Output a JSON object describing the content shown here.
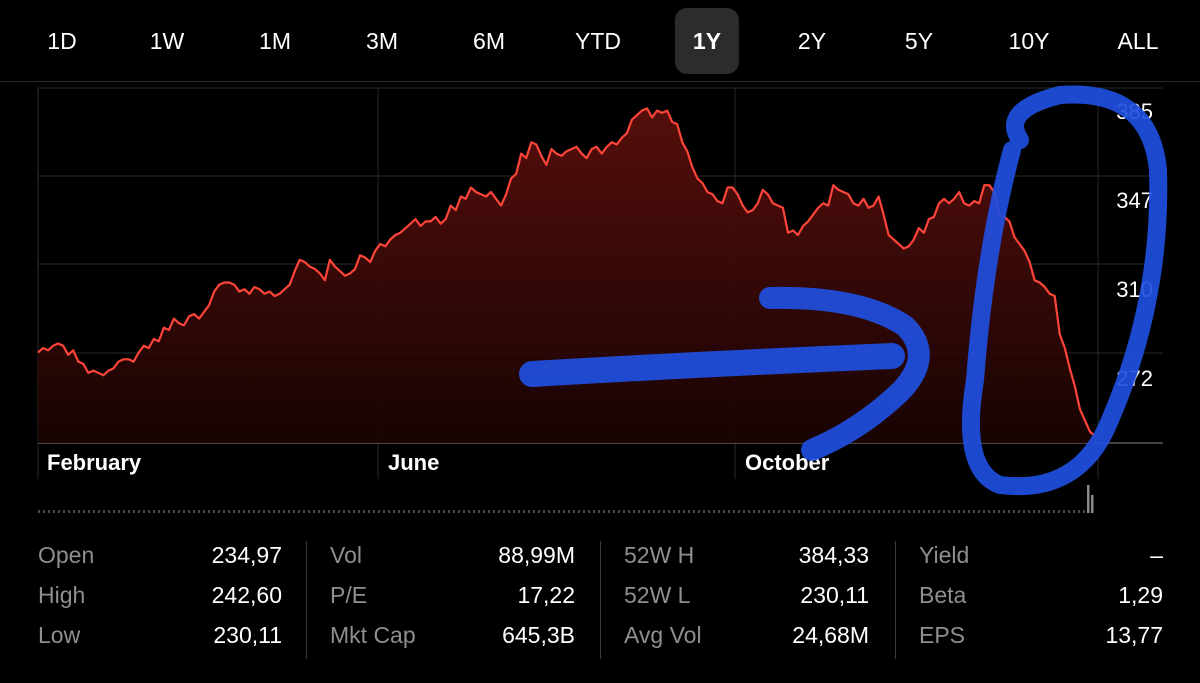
{
  "tabs": [
    {
      "label": "1D",
      "selected": false
    },
    {
      "label": "1W",
      "selected": false
    },
    {
      "label": "1M",
      "selected": false
    },
    {
      "label": "3M",
      "selected": false
    },
    {
      "label": "6M",
      "selected": false
    },
    {
      "label": "YTD",
      "selected": false
    },
    {
      "label": "1Y",
      "selected": true
    },
    {
      "label": "2Y",
      "selected": false
    },
    {
      "label": "5Y",
      "selected": false
    },
    {
      "label": "10Y",
      "selected": false
    },
    {
      "label": "ALL",
      "selected": false
    }
  ],
  "colors": {
    "line": "#ff453a",
    "fill_top": "#5a0f0c",
    "annotation": "#1f4fe0",
    "label_gray": "#8e8e93"
  },
  "chart_data": {
    "type": "line",
    "xlabel": "",
    "ylabel": "",
    "x_tick_labels": [
      "February",
      "June",
      "October"
    ],
    "y_tick_labels": [
      "385",
      "347",
      "310",
      "272"
    ],
    "ylim": [
      235,
      392
    ],
    "grid": true,
    "series": [
      {
        "values": [
          275,
          277,
          276,
          278,
          279,
          278,
          274,
          276,
          271,
          270,
          266,
          267,
          266,
          265,
          267,
          268,
          271,
          272,
          272,
          271,
          275,
          278,
          277,
          281,
          280,
          286,
          285,
          290,
          288,
          287,
          291,
          292,
          290,
          293,
          296,
          302,
          305,
          306,
          306,
          305,
          302,
          303,
          301,
          304,
          303,
          301,
          302,
          300,
          301,
          303,
          305,
          311,
          316,
          315,
          313,
          312,
          310,
          307,
          316,
          313,
          311,
          309,
          310,
          312,
          318,
          317,
          315,
          320,
          323,
          322,
          325,
          327,
          328,
          330,
          332,
          334,
          331,
          333,
          333,
          335,
          332,
          334,
          340,
          338,
          344,
          343,
          348,
          346,
          345,
          344,
          346,
          343,
          340,
          345,
          352,
          354,
          363,
          361,
          368,
          367,
          362,
          358,
          365,
          363,
          362,
          364,
          365,
          366,
          363,
          361,
          365,
          366,
          363,
          366,
          368,
          367,
          370,
          372,
          378,
          380,
          382,
          383,
          379,
          382,
          381,
          382,
          377,
          376,
          368,
          364,
          357,
          352,
          350,
          346,
          345,
          342,
          341,
          348,
          348,
          345,
          340,
          337,
          338,
          341,
          347,
          345,
          341,
          340,
          339,
          328,
          329,
          327,
          331,
          333,
          336,
          339,
          341,
          340,
          349,
          347,
          346,
          345,
          341,
          340,
          343,
          339,
          340,
          344,
          336,
          327,
          325,
          323,
          321,
          322,
          325,
          330,
          328,
          334,
          335,
          341,
          343,
          341,
          343,
          346,
          341,
          340,
          342,
          341,
          349,
          349,
          346,
          336,
          335,
          333,
          326,
          323,
          320,
          315,
          307,
          306,
          304,
          301,
          300,
          283,
          277,
          268,
          260,
          250,
          245,
          240,
          238
        ]
      }
    ],
    "price_labels_printed": "385, 347, 310, 272 on the right axis"
  },
  "stats": [
    [
      {
        "label": "Open",
        "value": "234,97"
      },
      {
        "label": "High",
        "value": "242,60"
      },
      {
        "label": "Low",
        "value": "230,11"
      }
    ],
    [
      {
        "label": "Vol",
        "value": "88,99M"
      },
      {
        "label": "P/E",
        "value": "17,22"
      },
      {
        "label": "Mkt Cap",
        "value": "645,3B"
      }
    ],
    [
      {
        "label": "52W H",
        "value": "384,33"
      },
      {
        "label": "52W L",
        "value": "230,11"
      },
      {
        "label": "Avg Vol",
        "value": "24,68M"
      }
    ],
    [
      {
        "label": "Yield",
        "value": "–"
      },
      {
        "label": "Beta",
        "value": "1,29"
      },
      {
        "label": "EPS",
        "value": "13,77"
      }
    ]
  ]
}
